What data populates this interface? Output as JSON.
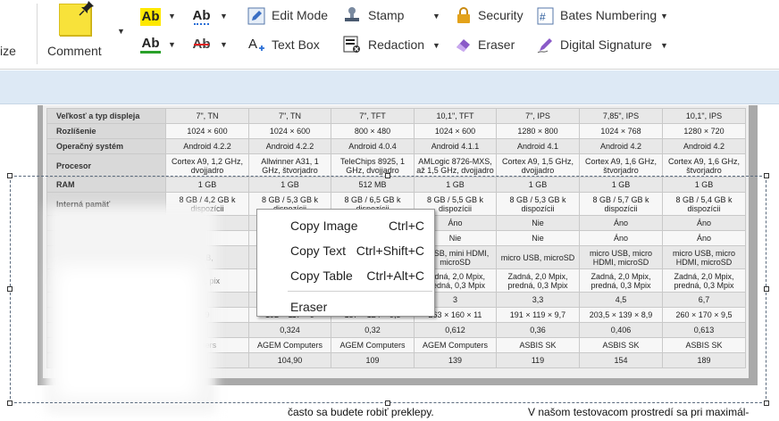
{
  "ribbon": {
    "size_label": "ize",
    "comment_label": "Comment",
    "edit_mode": "Edit Mode",
    "text_box": "Text Box",
    "stamp": "Stamp",
    "redaction": "Redaction",
    "security": "Security",
    "eraser": "Eraser",
    "bates_numbering": "Bates Numbering",
    "digital_signature": "Digital Signature",
    "ab_label": "Ab"
  },
  "table": {
    "rows": [
      {
        "label": "Veľkosť a typ displeja",
        "cells": [
          "7\", TN",
          "7\", TN",
          "7\", TFT",
          "10,1\", TFT",
          "7\", IPS",
          "7,85\", IPS",
          "10,1\", IPS"
        ]
      },
      {
        "label": "Rozlíšenie",
        "cells": [
          "1024 × 600",
          "1024 × 600",
          "800 × 480",
          "1024 × 600",
          "1280 × 800",
          "1024 × 768",
          "1280 × 720"
        ]
      },
      {
        "label": "Operačný systém",
        "cells": [
          "Android 4.2.2",
          "Android 4.2.2",
          "Android 4.0.4",
          "Android 4.1.1",
          "Android 4.1",
          "Android 4.2",
          "Android 4.2"
        ]
      },
      {
        "label": "Procesor",
        "cells": [
          "Cortex A9, 1,2 GHz, dvojjadro",
          "Allwinner A31, 1 GHz, štvorjadro",
          "TeleChips 8925, 1 GHz, dvojjadro",
          "AMLogic 8726-MXS, až 1,5 GHz, dvojjadro",
          "Cortex A9, 1,5 GHz, dvojjadro",
          "Cortex A9, 1,6 GHz, štvorjadro",
          "Cortex A9, 1,6 GHz, štvorjadro"
        ]
      },
      {
        "label": "RAM",
        "cells": [
          "1 GB",
          "1 GB",
          "512 MB",
          "1 GB",
          "1 GB",
          "1 GB",
          "1 GB"
        ]
      },
      {
        "label": "Interná pamäť",
        "cells": [
          "8 GB / 4,2 GB k dispozícii",
          "8 GB / 5,3 GB k dispozícii",
          "8 GB / 6,5 GB k dispozícii",
          "8 GB / 5,5 GB k dispozícii",
          "8 GB / 5,3 GB k dispozícii",
          "8 GB / 5,7 GB k dispozícii",
          "8 GB / 5,4 GB k dispozícii"
        ]
      },
      {
        "label": "",
        "cells": [
          "",
          "",
          "",
          "Áno",
          "Nie",
          "Áno",
          "Áno"
        ]
      },
      {
        "label": "",
        "cells": [
          "",
          "",
          "",
          "Nie",
          "Nie",
          "Áno",
          "Áno"
        ]
      },
      {
        "label": "",
        "cells": [
          ": B,",
          "m",
          "",
          "o USB, mini HDMI, microSD",
          "micro USB, microSD",
          "micro USB, micro HDMI, microSD",
          "micro USB, micro HDMI, microSD"
        ]
      },
      {
        "label": "",
        "cells": [
          "pix, pix",
          "",
          "",
          "Zadná, 2,0 Mpix, predná, 0,3 Mpix",
          "Zadná, 2,0 Mpix, predná, 0,3 Mpix",
          "Zadná, 2,0 Mpix, predná, 0,3 Mpix",
          "Zadná, 2,0 Mpix, predná, 0,3 Mpix"
        ]
      },
      {
        "label": "",
        "cells": [
          "",
          "",
          "",
          "3",
          "3,3",
          "4,5",
          "6,7"
        ]
      },
      {
        "label": "",
        "cells": [
          "9",
          "192 × 117 × 9",
          "187 × 124 × 9,5",
          "263 × 160 × 11",
          "191 × 119 × 9,7",
          "203,5 × 139 × 8,9",
          "260 × 170 × 9,5"
        ]
      },
      {
        "label": "",
        "cells": [
          "",
          "0,324",
          "0,32",
          "0,612",
          "0,36",
          "0,406",
          "0,613"
        ]
      },
      {
        "label": "",
        "cells": [
          "uters",
          "AGEM Computers",
          "AGEM Computers",
          "AGEM Computers",
          "ASBIS SK",
          "ASBIS SK",
          "ASBIS SK"
        ]
      },
      {
        "label": "",
        "cells": [
          "",
          "104,90",
          "109",
          "139",
          "119",
          "154",
          "189"
        ]
      }
    ]
  },
  "doc_text": {
    "left": "často sa budete robiť preklepy.",
    "right": "V našom testovacom prostredí sa pri maximál-"
  },
  "context_menu": {
    "items": [
      {
        "label": "Copy Image",
        "shortcut": "Ctrl+C"
      },
      {
        "label": "Copy Text",
        "shortcut": "Ctrl+Shift+C"
      },
      {
        "label": "Copy Table",
        "shortcut": "Ctrl+Alt+C"
      },
      {
        "label": "Eraser",
        "shortcut": ""
      }
    ]
  },
  "colors": {
    "note_yellow": "#f8e23a",
    "highlight_yellow": "#ffe800",
    "underline_green": "#2aa12a",
    "strike_red": "#e02020",
    "info_bar": "#dde9f5",
    "security_lock": "#e3a21a"
  },
  "icons": [
    "pushpin-icon",
    "pencil-box-icon",
    "text-box-icon",
    "stamp-icon",
    "redaction-icon",
    "lock-icon",
    "eraser-icon",
    "bates-icon",
    "signature-pen-icon",
    "chevron-down-icon"
  ]
}
